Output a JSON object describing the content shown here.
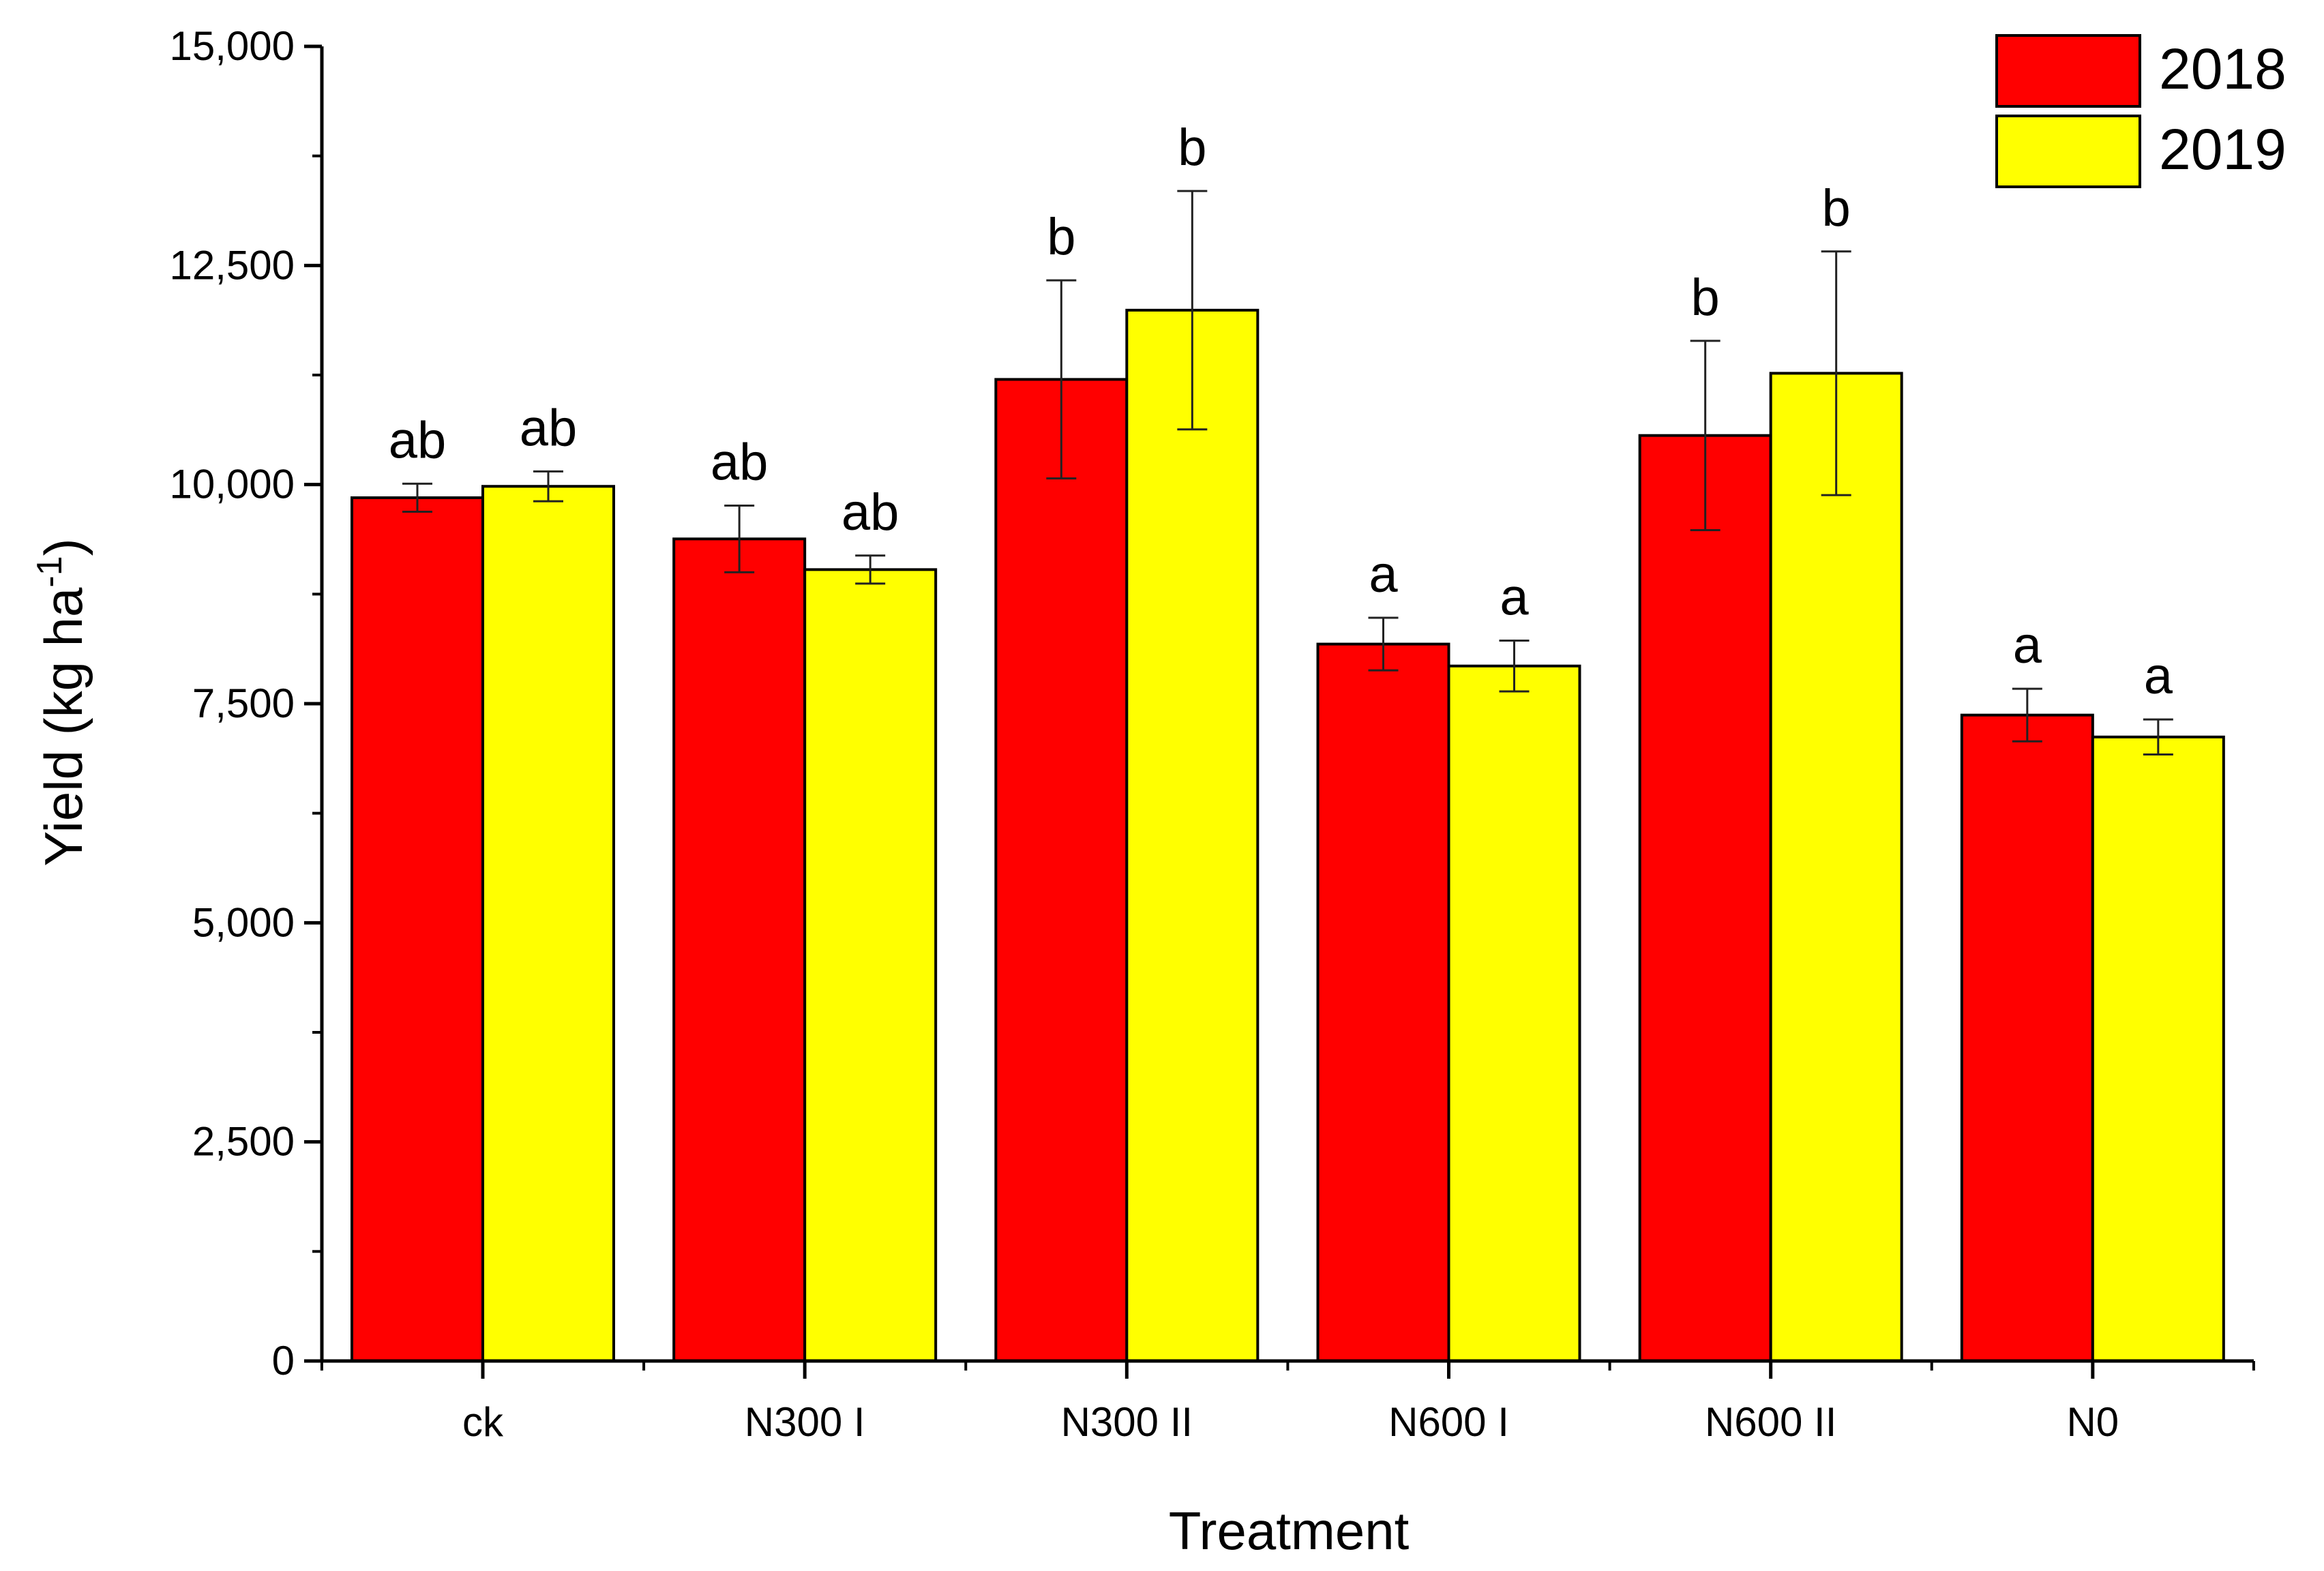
{
  "chart_data": {
    "type": "bar",
    "title": "",
    "xlabel": "Treatment",
    "ylabel": "Yield (kg ha",
    "ylabel_superscript": "-1",
    "ylabel_close": ")",
    "ylim": [
      0,
      15000
    ],
    "yticks": [
      0,
      2500,
      5000,
      7500,
      10000,
      12500,
      15000
    ],
    "ytick_labels": [
      "0",
      "2,500",
      "5,000",
      "7,500",
      "10,000",
      "12,500",
      "15,000"
    ],
    "categories": [
      "ck",
      "N300 I",
      "N300 II",
      "N600 I",
      "N600 II",
      "N0"
    ],
    "series": [
      {
        "name": "2018",
        "color": "#ff0000",
        "values": [
          9850,
          9380,
          11200,
          8180,
          10560,
          7370
        ],
        "errors": [
          160,
          380,
          1130,
          300,
          1080,
          300
        ],
        "labels": [
          "ab",
          "ab",
          "b",
          "a",
          "b",
          "a"
        ]
      },
      {
        "name": "2019",
        "color": "#ffff00",
        "values": [
          9980,
          9030,
          11990,
          7930,
          11270,
          7120
        ],
        "errors": [
          170,
          160,
          1360,
          290,
          1390,
          200
        ],
        "labels": [
          "ab",
          "ab",
          "b",
          "a",
          "b",
          "a"
        ]
      }
    ],
    "legend": {
      "position": "top-right",
      "entries": [
        "2018",
        "2019"
      ]
    }
  }
}
